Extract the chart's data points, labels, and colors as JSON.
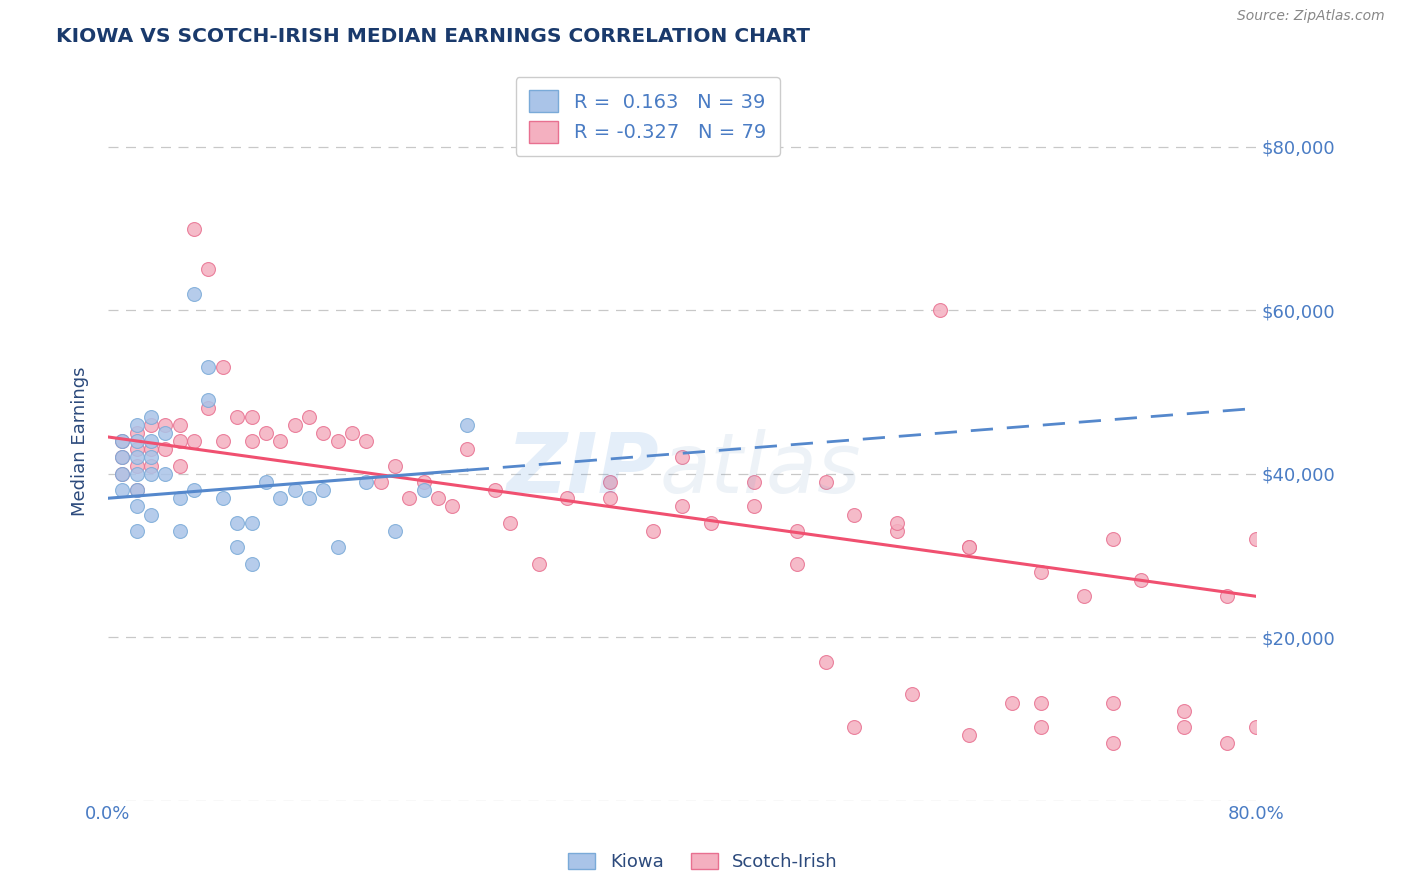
{
  "title": "KIOWA VS SCOTCH-IRISH MEDIAN EARNINGS CORRELATION CHART",
  "source": "Source: ZipAtlas.com",
  "ylabel": "Median Earnings",
  "xlim": [
    0.0,
    0.8
  ],
  "ylim": [
    0,
    88000
  ],
  "yticks": [
    0,
    20000,
    40000,
    60000,
    80000
  ],
  "ytick_labels": [
    "",
    "$20,000",
    "$40,000",
    "$60,000",
    "$80,000"
  ],
  "grid_color": "#c8c8c8",
  "background_color": "#ffffff",
  "kiowa_color": "#aac4e8",
  "kiowa_edge_color": "#7aaad8",
  "scotchirish_color": "#f4b0c0",
  "scotchirish_edge_color": "#e87090",
  "kiowa_line_color": "#5588cc",
  "scotchirish_line_color": "#f05070",
  "legend_R1": "R =  0.163",
  "legend_N1": "N = 39",
  "legend_R2": "R = -0.327",
  "legend_N2": "N = 79",
  "title_color": "#1a3a6c",
  "axis_label_color": "#2c4a7c",
  "tick_label_color": "#4a7cc4",
  "source_color": "#888888",
  "kiowa_line_x0": 0.0,
  "kiowa_line_x1": 0.8,
  "kiowa_line_y0": 37000,
  "kiowa_line_y1": 48000,
  "scotchirish_line_x0": 0.0,
  "scotchirish_line_x1": 0.8,
  "scotchirish_line_y0": 44500,
  "scotchirish_line_y1": 25000,
  "kiowa_x": [
    0.01,
    0.01,
    0.01,
    0.01,
    0.02,
    0.02,
    0.02,
    0.02,
    0.02,
    0.02,
    0.02,
    0.03,
    0.03,
    0.03,
    0.03,
    0.03,
    0.04,
    0.04,
    0.05,
    0.05,
    0.06,
    0.06,
    0.07,
    0.07,
    0.08,
    0.09,
    0.09,
    0.1,
    0.1,
    0.11,
    0.12,
    0.13,
    0.14,
    0.15,
    0.16,
    0.18,
    0.2,
    0.22,
    0.25
  ],
  "kiowa_y": [
    44000,
    42000,
    40000,
    38000,
    46000,
    44000,
    42000,
    40000,
    38000,
    36000,
    33000,
    47000,
    44000,
    42000,
    40000,
    35000,
    45000,
    40000,
    37000,
    33000,
    62000,
    38000,
    53000,
    49000,
    37000,
    34000,
    31000,
    34000,
    29000,
    39000,
    37000,
    38000,
    37000,
    38000,
    31000,
    39000,
    33000,
    38000,
    46000
  ],
  "scotchirish_x": [
    0.01,
    0.01,
    0.01,
    0.02,
    0.02,
    0.02,
    0.02,
    0.03,
    0.03,
    0.03,
    0.04,
    0.04,
    0.05,
    0.05,
    0.05,
    0.06,
    0.06,
    0.07,
    0.07,
    0.08,
    0.08,
    0.09,
    0.1,
    0.1,
    0.11,
    0.12,
    0.13,
    0.14,
    0.15,
    0.16,
    0.17,
    0.18,
    0.19,
    0.2,
    0.21,
    0.22,
    0.23,
    0.24,
    0.25,
    0.27,
    0.28,
    0.3,
    0.32,
    0.35,
    0.38,
    0.4,
    0.42,
    0.45,
    0.48,
    0.5,
    0.52,
    0.55,
    0.58,
    0.6,
    0.63,
    0.65,
    0.68,
    0.7,
    0.72,
    0.75,
    0.78,
    0.8,
    0.35,
    0.4,
    0.45,
    0.5,
    0.55,
    0.6,
    0.65,
    0.7,
    0.48,
    0.52,
    0.56,
    0.6,
    0.65,
    0.7,
    0.75,
    0.78,
    0.8
  ],
  "scotchirish_y": [
    44000,
    42000,
    40000,
    45000,
    43000,
    41000,
    38000,
    46000,
    43000,
    41000,
    46000,
    43000,
    46000,
    44000,
    41000,
    70000,
    44000,
    65000,
    48000,
    53000,
    44000,
    47000,
    47000,
    44000,
    45000,
    44000,
    46000,
    47000,
    45000,
    44000,
    45000,
    44000,
    39000,
    41000,
    37000,
    39000,
    37000,
    36000,
    43000,
    38000,
    34000,
    29000,
    37000,
    39000,
    33000,
    36000,
    34000,
    39000,
    33000,
    17000,
    35000,
    33000,
    60000,
    31000,
    12000,
    28000,
    25000,
    12000,
    27000,
    11000,
    25000,
    32000,
    37000,
    42000,
    36000,
    39000,
    34000,
    31000,
    9000,
    32000,
    29000,
    9000,
    13000,
    8000,
    12000,
    7000,
    9000,
    7000,
    9000
  ]
}
